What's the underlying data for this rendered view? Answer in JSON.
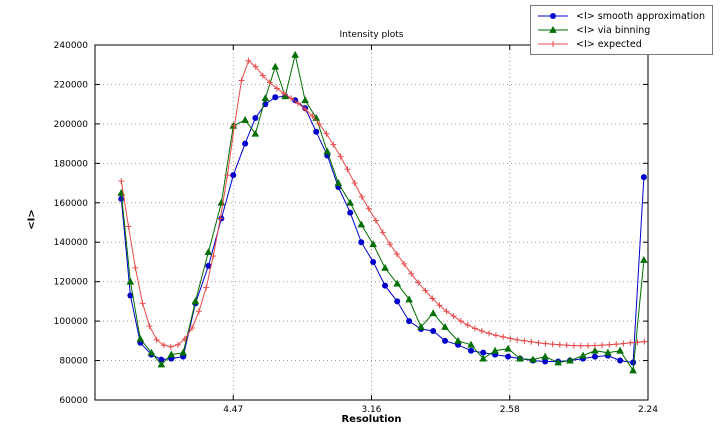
{
  "chart_data": {
    "type": "line",
    "title": "Intensity plots",
    "xlabel": "Resolution",
    "ylabel": "<I>",
    "x_axis": {
      "scale_note": "x positions are linear in 1/d^2; tick labels show resolution d",
      "range": [
        0,
        0.2
      ],
      "ticks": [
        {
          "value": 0.05,
          "label": "4.47"
        },
        {
          "value": 0.1,
          "label": "3.16"
        },
        {
          "value": 0.15,
          "label": "2.58"
        },
        {
          "value": 0.2,
          "label": "2.24"
        }
      ]
    },
    "y_axis": {
      "range": [
        60000,
        240000
      ],
      "ticks": [
        60000,
        80000,
        100000,
        120000,
        140000,
        160000,
        180000,
        200000,
        220000,
        240000
      ]
    },
    "grid": {
      "show": true,
      "style": "dotted",
      "color": "#9a9a9a"
    },
    "legend": {
      "position": "top-right-outside",
      "border_color": "#777777"
    },
    "series": [
      {
        "name": "<I> smooth approximation",
        "color": "#0000cc",
        "marker": "circle",
        "x": [
          0.0095,
          0.0128,
          0.0164,
          0.0204,
          0.024,
          0.0276,
          0.0319,
          0.0363,
          0.041,
          0.0457,
          0.05,
          0.0543,
          0.058,
          0.0616,
          0.0652,
          0.0688,
          0.0724,
          0.076,
          0.08,
          0.084,
          0.088,
          0.0923,
          0.0963,
          0.1006,
          0.1049,
          0.1093,
          0.1136,
          0.1179,
          0.1223,
          0.1266,
          0.1313,
          0.136,
          0.1404,
          0.1447,
          0.1494,
          0.1537,
          0.1584,
          0.1628,
          0.1675,
          0.1718,
          0.1765,
          0.1808,
          0.1855,
          0.1899,
          0.1946,
          0.1985
        ],
        "y": [
          162000,
          113000,
          89000,
          83000,
          80500,
          81000,
          82000,
          109000,
          128000,
          152000,
          174000,
          190000,
          203000,
          210000,
          213500,
          214000,
          212000,
          208000,
          196000,
          184000,
          168000,
          155000,
          140000,
          130000,
          118000,
          110000,
          100000,
          96000,
          95000,
          90000,
          88000,
          85000,
          84000,
          83000,
          82000,
          81000,
          80000,
          79500,
          79500,
          80000,
          81000,
          82000,
          82500,
          80000,
          79000,
          173000
        ]
      },
      {
        "name": "<I> via binning",
        "color": "#006e00",
        "marker": "triangle",
        "x": [
          0.0095,
          0.0128,
          0.0164,
          0.0204,
          0.024,
          0.0276,
          0.0319,
          0.0363,
          0.041,
          0.0457,
          0.05,
          0.0543,
          0.058,
          0.0616,
          0.0652,
          0.0688,
          0.0724,
          0.076,
          0.08,
          0.084,
          0.088,
          0.0923,
          0.0963,
          0.1006,
          0.1049,
          0.1093,
          0.1136,
          0.1179,
          0.1223,
          0.1266,
          0.1313,
          0.136,
          0.1404,
          0.1447,
          0.1494,
          0.1537,
          0.1584,
          0.1628,
          0.1675,
          0.1718,
          0.1765,
          0.1808,
          0.1855,
          0.1899,
          0.1946,
          0.1985
        ],
        "y": [
          165000,
          120000,
          91000,
          84000,
          78000,
          83000,
          84000,
          110000,
          135000,
          160000,
          199000,
          202000,
          195000,
          213000,
          229000,
          214000,
          235000,
          212000,
          203000,
          186000,
          170000,
          160000,
          149000,
          139000,
          127000,
          119000,
          111000,
          97000,
          104000,
          97000,
          90000,
          88000,
          81000,
          85000,
          86000,
          81000,
          80500,
          82000,
          79000,
          80000,
          82500,
          85000,
          84000,
          85000,
          75000,
          131000
        ]
      },
      {
        "name": "<I> expected",
        "color": "#e84a4a",
        "marker": "plus",
        "x": [
          0.0095,
          0.0121,
          0.0146,
          0.0172,
          0.0197,
          0.0223,
          0.0249,
          0.0274,
          0.03,
          0.0325,
          0.0351,
          0.0376,
          0.0402,
          0.0428,
          0.0453,
          0.0479,
          0.0504,
          0.053,
          0.0555,
          0.0581,
          0.0607,
          0.0632,
          0.0658,
          0.0683,
          0.0709,
          0.0734,
          0.076,
          0.0786,
          0.0811,
          0.0837,
          0.0862,
          0.0888,
          0.0913,
          0.0939,
          0.0965,
          0.099,
          0.1016,
          0.1041,
          0.1067,
          0.1092,
          0.1118,
          0.1144,
          0.1169,
          0.1195,
          0.122,
          0.1246,
          0.1271,
          0.1297,
          0.1323,
          0.1348,
          0.1374,
          0.1399,
          0.1425,
          0.145,
          0.1476,
          0.1502,
          0.1527,
          0.1553,
          0.1578,
          0.1604,
          0.1629,
          0.1655,
          0.1681,
          0.1706,
          0.1732,
          0.1757,
          0.1783,
          0.1808,
          0.1834,
          0.186,
          0.1885,
          0.1911,
          0.1936,
          0.1962,
          0.1987
        ],
        "y": [
          171000,
          148000,
          127000,
          109000,
          97500,
          90500,
          87800,
          87000,
          88000,
          91000,
          96500,
          105000,
          117000,
          133000,
          152000,
          174000,
          199000,
          222000,
          232000,
          229000,
          224500,
          221000,
          218000,
          215500,
          213000,
          210500,
          207500,
          204000,
          200000,
          195000,
          189500,
          183500,
          177000,
          170000,
          163000,
          157000,
          151000,
          145000,
          139000,
          134000,
          129000,
          124000,
          119500,
          115500,
          111500,
          108000,
          105000,
          102500,
          100000,
          98000,
          96300,
          95000,
          93800,
          92800,
          92000,
          91200,
          90500,
          90000,
          89500,
          89000,
          88600,
          88300,
          88000,
          87800,
          87600,
          87500,
          87500,
          87600,
          87800,
          88000,
          88300,
          88600,
          89000,
          89300,
          89600
        ]
      }
    ]
  }
}
